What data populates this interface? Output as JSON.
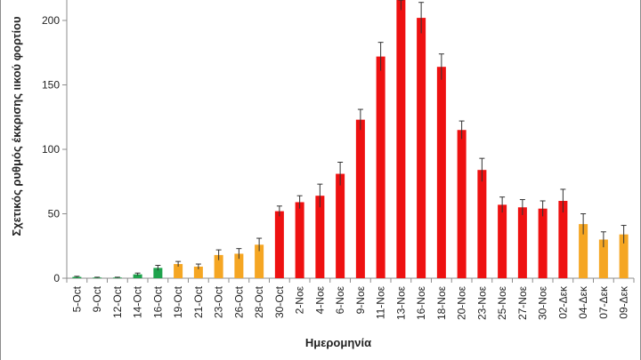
{
  "chart_data": {
    "type": "bar",
    "title": "",
    "xlabel": "Ημερομηνία",
    "ylabel": "Σχετικός ρυθμός έκκρισης ιικού φορτίου",
    "ylim": [
      0,
      220
    ],
    "yticks": [
      0,
      50,
      100,
      150,
      200
    ],
    "grid": false,
    "legend": "none",
    "categories": [
      "5-Oct",
      "9-Oct",
      "12-Oct",
      "14-Oct",
      "16-Oct",
      "19-Oct",
      "21-Oct",
      "23-Oct",
      "26-Oct",
      "28-Oct",
      "30-Oct",
      "2-Νοε",
      "4-Νοε",
      "6-Νοε",
      "9-Νοε",
      "11-Νοε",
      "13-Νοε",
      "16-Νοε",
      "18-Νοε",
      "20-Νοε",
      "23-Νοε",
      "25-Νοε",
      "27-Νοε",
      "30-Νοε",
      "02-Δεκ",
      "04-Δεκ",
      "07-Δεκ",
      "09-Δεκ"
    ],
    "values": [
      1,
      0.5,
      0.5,
      3,
      8,
      11,
      9,
      18,
      19,
      26,
      52,
      59,
      64,
      81,
      123,
      172,
      218,
      202,
      164,
      115,
      84,
      57,
      55,
      54,
      60,
      42,
      30,
      34
    ],
    "errors": [
      0.5,
      0.3,
      0.3,
      1,
      2,
      2,
      2,
      4,
      4,
      5,
      4,
      5,
      9,
      9,
      8,
      11,
      10,
      12,
      10,
      7,
      9,
      6,
      6,
      6,
      9,
      8,
      6,
      7
    ],
    "bar_colors": [
      "#1ea24c",
      "#1ea24c",
      "#1ea24c",
      "#1ea24c",
      "#1ea24c",
      "#f5a623",
      "#f5a623",
      "#f5a623",
      "#f5a623",
      "#f5a623",
      "#ee1111",
      "#ee1111",
      "#ee1111",
      "#ee1111",
      "#ee1111",
      "#ee1111",
      "#ee1111",
      "#ee1111",
      "#ee1111",
      "#ee1111",
      "#ee1111",
      "#ee1111",
      "#ee1111",
      "#ee1111",
      "#ee1111",
      "#f5a623",
      "#f5a623",
      "#f5a623"
    ]
  }
}
